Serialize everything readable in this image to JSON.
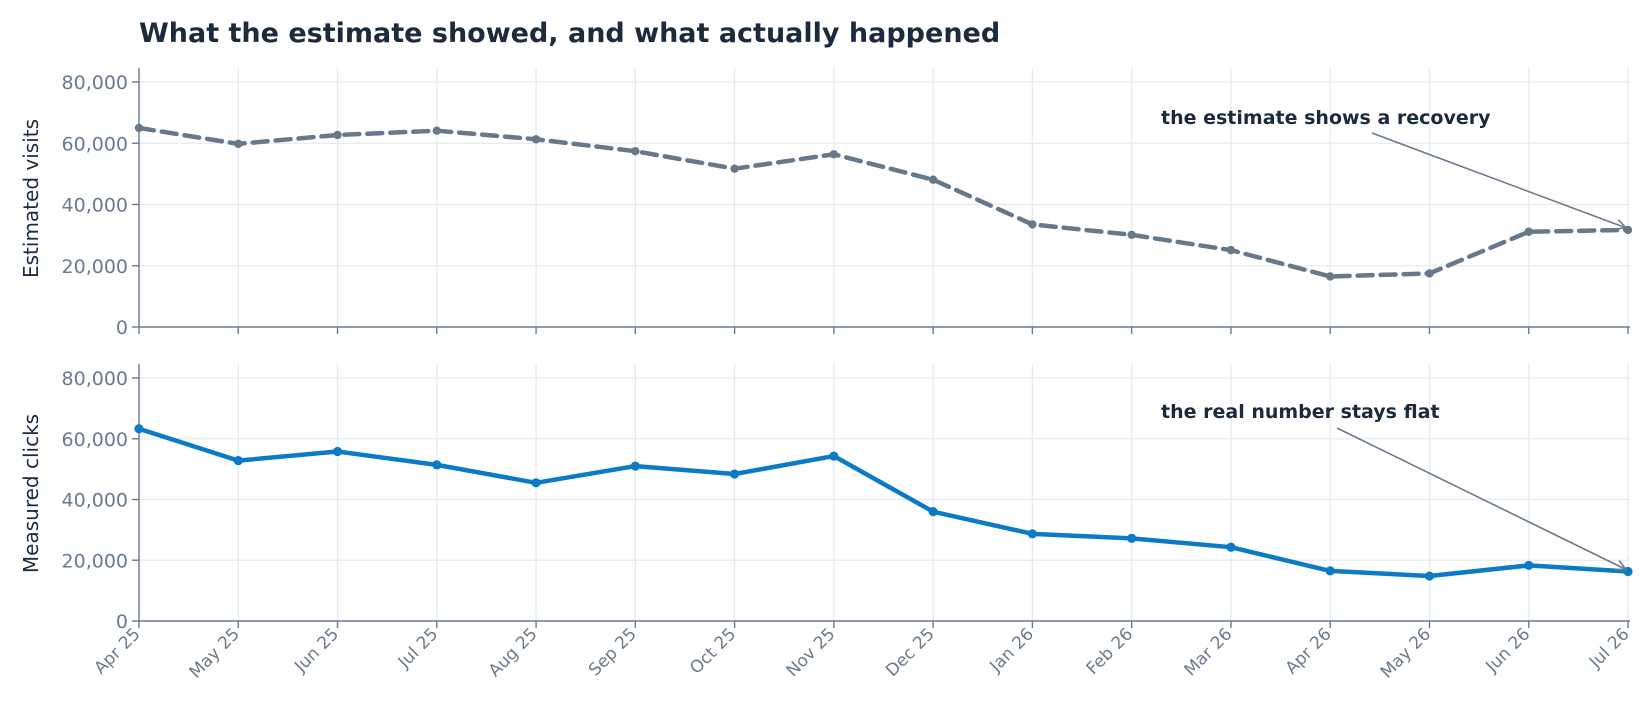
{
  "title": "What the estimate showed, and what actually happened",
  "colors": {
    "estimate": "#66788a",
    "measured": "#0a7bc4",
    "grid": "#e6eaef",
    "axis": "#6b7a8d",
    "text": "#1b2a3c"
  },
  "chart_data": [
    {
      "type": "line",
      "ylabel": "Estimated visits",
      "ylim": [
        0,
        82000
      ],
      "yticks": [
        0,
        20000,
        40000,
        60000,
        80000
      ],
      "ytick_labels": [
        "0",
        "20,000",
        "40,000",
        "60,000",
        "80,000"
      ],
      "grid": true,
      "line_style": "dashed",
      "categories": [
        "Apr 25",
        "May 25",
        "Jun 25",
        "Jul 25",
        "Aug 25",
        "Sep 25",
        "Oct 25",
        "Nov 25",
        "Dec 25",
        "Jan 26",
        "Feb 26",
        "Mar 26",
        "Apr 26",
        "May 26",
        "Jun 26",
        "Jul 26"
      ],
      "values": [
        65000,
        59800,
        62700,
        64100,
        61300,
        57400,
        51700,
        56400,
        48100,
        33500,
        30100,
        25100,
        16500,
        17500,
        31100,
        31700
      ],
      "annotation": {
        "text": "the estimate shows a recovery",
        "target_index": 15
      }
    },
    {
      "type": "line",
      "ylabel": "Measured clicks",
      "ylim": [
        0,
        82000
      ],
      "yticks": [
        0,
        20000,
        40000,
        60000,
        80000
      ],
      "ytick_labels": [
        "0",
        "20,000",
        "40,000",
        "60,000",
        "80,000"
      ],
      "grid": true,
      "line_style": "solid",
      "categories": [
        "Apr 25",
        "May 25",
        "Jun 25",
        "Jul 25",
        "Aug 25",
        "Sep 25",
        "Oct 25",
        "Nov 25",
        "Dec 25",
        "Jan 26",
        "Feb 26",
        "Mar 26",
        "Apr 26",
        "May 26",
        "Jun 26",
        "Jul 26"
      ],
      "values": [
        63300,
        52800,
        55800,
        51400,
        45500,
        51000,
        48400,
        54300,
        36000,
        28700,
        27200,
        24300,
        16500,
        14800,
        18300,
        16300
      ],
      "annotation": {
        "text": "the real number stays flat",
        "target_index": 15
      }
    }
  ]
}
